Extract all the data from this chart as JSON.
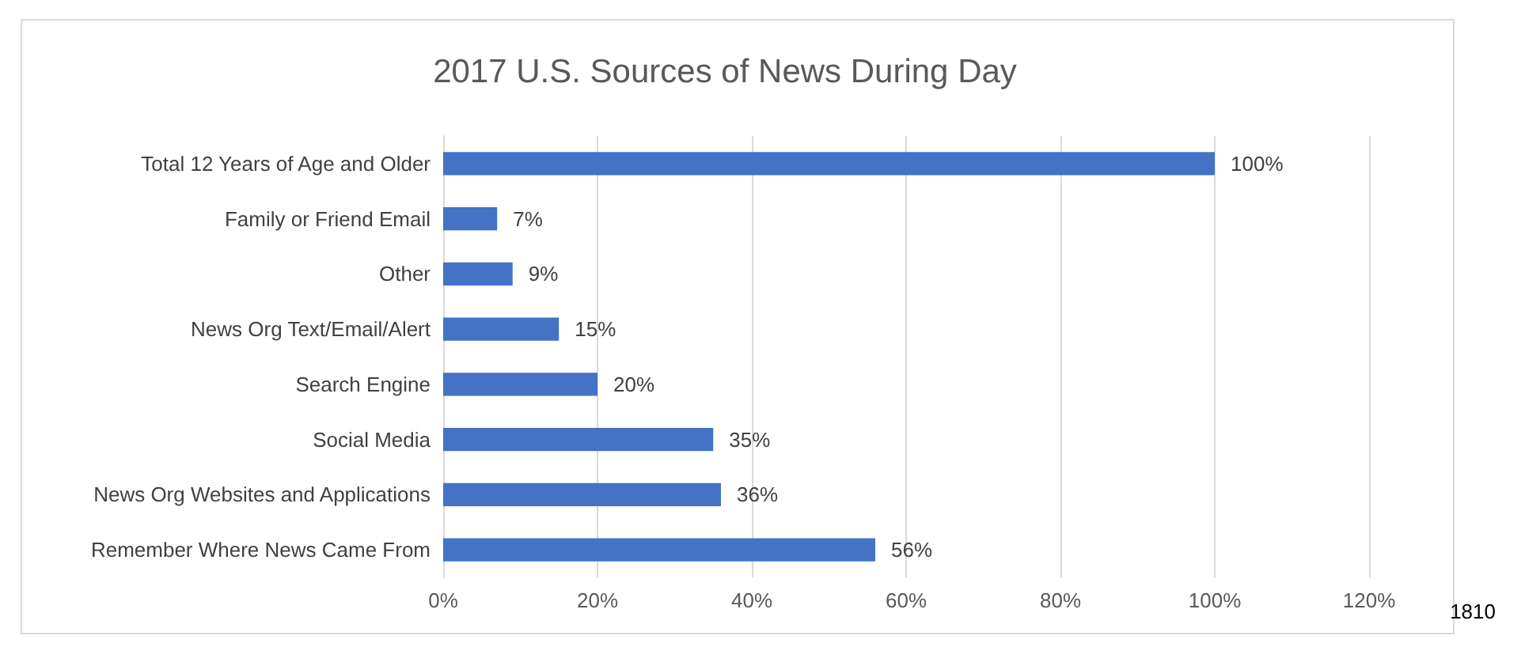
{
  "chart_data": {
    "type": "bar",
    "orientation": "horizontal",
    "title": "2017 U.S. Sources of News During Day",
    "categories": [
      "Total 12 Years of Age and Older",
      "Family or Friend Email",
      "Other",
      "News Org Text/Email/Alert",
      "Search Engine",
      "Social Media",
      "News Org Websites and Applications",
      "Remember Where News Came From"
    ],
    "values": [
      100,
      7,
      9,
      15,
      20,
      35,
      36,
      56
    ],
    "value_labels": [
      "100%",
      "7%",
      "9%",
      "15%",
      "20%",
      "35%",
      "36%",
      "56%"
    ],
    "color": "#4472c4",
    "xlim": [
      0,
      120
    ],
    "xticks": [
      {
        "value": 0,
        "label": "0%"
      },
      {
        "value": 20,
        "label": "20%"
      },
      {
        "value": 40,
        "label": "40%"
      },
      {
        "value": 60,
        "label": "60%"
      },
      {
        "value": 80,
        "label": "80%"
      },
      {
        "value": 100,
        "label": "100%"
      },
      {
        "value": 120,
        "label": "120%"
      }
    ],
    "grid": "x",
    "annotations": [
      "1810"
    ]
  }
}
